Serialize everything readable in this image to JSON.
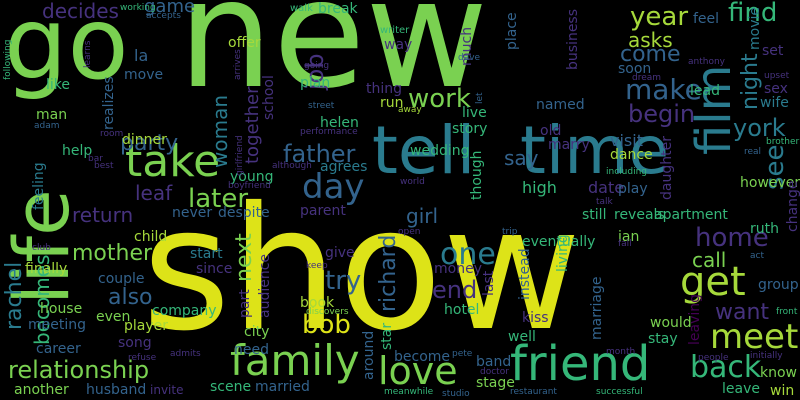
{
  "palette": {
    "background": "#000000",
    "yellow_green": "#a6d93b",
    "lime": "#7ad151",
    "yellow": "#dde318",
    "teal": "#2a7b8e",
    "seafoam": "#35b779",
    "blue": "#33638d",
    "indigo": "#46327e",
    "purple": "#440154"
  },
  "words": [
    {
      "text": "new",
      "color": "#7ad151"
    },
    {
      "text": "show",
      "color": "#dde318"
    },
    {
      "text": "go",
      "color": "#7ad151"
    },
    {
      "text": "tell",
      "color": "#2a7b8e"
    },
    {
      "text": "time",
      "color": "#2a7b8e"
    },
    {
      "text": "life",
      "color": "#7ad151"
    },
    {
      "text": "take",
      "color": "#7ad151"
    },
    {
      "text": "friend",
      "color": "#35b779"
    },
    {
      "text": "family",
      "color": "#7ad151"
    },
    {
      "text": "love",
      "color": "#7ad151"
    },
    {
      "text": "film",
      "color": "#2a7b8e"
    },
    {
      "text": "meet",
      "color": "#a6d93b"
    },
    {
      "text": "get",
      "color": "#a6d93b"
    },
    {
      "text": "day",
      "color": "#33638d"
    },
    {
      "text": "one",
      "color": "#2a7b8e"
    },
    {
      "text": "back",
      "color": "#35b779"
    },
    {
      "text": "make",
      "color": "#33638d"
    },
    {
      "text": "work",
      "color": "#7ad151"
    },
    {
      "text": "find",
      "color": "#35b779"
    },
    {
      "text": "year",
      "color": "#a6d93b"
    },
    {
      "text": "later",
      "color": "#7ad151"
    },
    {
      "text": "home",
      "color": "#46327e"
    },
    {
      "text": "york",
      "color": "#2a7b8e"
    },
    {
      "text": "party",
      "color": "#33638d"
    },
    {
      "text": "father",
      "color": "#33638d"
    },
    {
      "text": "mother",
      "color": "#7ad151"
    },
    {
      "text": "try",
      "color": "#33638d"
    },
    {
      "text": "end",
      "color": "#46327e"
    },
    {
      "text": "bob",
      "color": "#dde318"
    },
    {
      "text": "also",
      "color": "#33638d"
    },
    {
      "text": "relationship",
      "color": "#7ad151"
    },
    {
      "text": "rachel",
      "color": "#2a7b8e"
    },
    {
      "text": "richard",
      "color": "#33638d"
    },
    {
      "text": "next",
      "color": "#7ad151"
    },
    {
      "text": "woman",
      "color": "#2a7b8e"
    },
    {
      "text": "job",
      "color": "#46327e"
    },
    {
      "text": "together",
      "color": "#46327e"
    },
    {
      "text": "begin",
      "color": "#46327e"
    },
    {
      "text": "come",
      "color": "#33638d"
    },
    {
      "text": "asks",
      "color": "#a6d93b"
    },
    {
      "text": "night",
      "color": "#2a7b8e"
    },
    {
      "text": "see",
      "color": "#2a7b8e"
    },
    {
      "text": "call",
      "color": "#7ad151"
    },
    {
      "text": "want",
      "color": "#46327e"
    },
    {
      "text": "return",
      "color": "#46327e"
    },
    {
      "text": "leaf",
      "color": "#46327e"
    },
    {
      "text": "decides",
      "color": "#46327e"
    },
    {
      "text": "game",
      "color": "#33638d"
    },
    {
      "text": "becomes",
      "color": "#35b779"
    },
    {
      "text": "say",
      "color": "#33638d"
    },
    {
      "text": "girl",
      "color": "#33638d"
    },
    {
      "text": "apartment",
      "color": "#35b779"
    },
    {
      "text": "reveals",
      "color": "#35b779"
    },
    {
      "text": "still",
      "color": "#35b779"
    },
    {
      "text": "visit",
      "color": "#33638d"
    },
    {
      "text": "date",
      "color": "#46327e"
    },
    {
      "text": "high",
      "color": "#35b779"
    },
    {
      "text": "way",
      "color": "#46327e"
    },
    {
      "text": "la",
      "color": "#33638d"
    },
    {
      "text": "offer",
      "color": "#a6d93b"
    },
    {
      "text": "move",
      "color": "#33638d"
    },
    {
      "text": "like",
      "color": "#35b779"
    },
    {
      "text": "man",
      "color": "#7ad151"
    },
    {
      "text": "helen",
      "color": "#35b779"
    },
    {
      "text": "run",
      "color": "#a6d93b"
    },
    {
      "text": "live",
      "color": "#35b779"
    },
    {
      "text": "story",
      "color": "#35b779"
    },
    {
      "text": "place",
      "color": "#33638d"
    },
    {
      "text": "business",
      "color": "#46327e"
    },
    {
      "text": "feel",
      "color": "#33638d"
    },
    {
      "text": "lead",
      "color": "#35b779"
    },
    {
      "text": "sex",
      "color": "#46327e"
    },
    {
      "text": "wife",
      "color": "#2a7b8e"
    },
    {
      "text": "couple",
      "color": "#33638d"
    },
    {
      "text": "finally",
      "color": "#a6d93b"
    },
    {
      "text": "house",
      "color": "#7ad151"
    },
    {
      "text": "meeting",
      "color": "#33638d"
    },
    {
      "text": "career",
      "color": "#33638d"
    },
    {
      "text": "song",
      "color": "#46327e"
    },
    {
      "text": "player",
      "color": "#a6d93b"
    },
    {
      "text": "husband",
      "color": "#33638d"
    },
    {
      "text": "another",
      "color": "#7ad151"
    },
    {
      "text": "company",
      "color": "#35b779"
    },
    {
      "text": "city",
      "color": "#7ad151"
    },
    {
      "text": "need",
      "color": "#33638d"
    },
    {
      "text": "scene",
      "color": "#35b779"
    },
    {
      "text": "married",
      "color": "#33638d"
    },
    {
      "text": "stage",
      "color": "#7ad151"
    },
    {
      "text": "band",
      "color": "#33638d"
    },
    {
      "text": "well",
      "color": "#35b779"
    },
    {
      "text": "become",
      "color": "#33638d"
    },
    {
      "text": "hotel",
      "color": "#35b779"
    },
    {
      "text": "instead",
      "color": "#33638d"
    },
    {
      "text": "kiss",
      "color": "#46327e"
    },
    {
      "text": "living",
      "color": "#35b779"
    },
    {
      "text": "eventually",
      "color": "#35b779"
    },
    {
      "text": "ruth",
      "color": "#35b779"
    },
    {
      "text": "ian",
      "color": "#7ad151"
    },
    {
      "text": "play",
      "color": "#33638d"
    },
    {
      "text": "dance",
      "color": "#a6d93b"
    },
    {
      "text": "wedding",
      "color": "#35b779"
    },
    {
      "text": "agrees",
      "color": "#2a7b8e"
    },
    {
      "text": "though",
      "color": "#35b779"
    },
    {
      "text": "named",
      "color": "#33638d"
    },
    {
      "text": "marry",
      "color": "#46327e"
    },
    {
      "text": "daughter",
      "color": "#46327e"
    },
    {
      "text": "however",
      "color": "#7ad151"
    },
    {
      "text": "change",
      "color": "#46327e"
    },
    {
      "text": "start",
      "color": "#2a7b8e"
    },
    {
      "text": "give",
      "color": "#46327e"
    },
    {
      "text": "parent",
      "color": "#46327e"
    },
    {
      "text": "book",
      "color": "#a6d93b"
    },
    {
      "text": "money",
      "color": "#46327e"
    },
    {
      "text": "last",
      "color": "#46327e"
    },
    {
      "text": "child",
      "color": "#a6d93b"
    },
    {
      "text": "never",
      "color": "#33638d"
    },
    {
      "text": "despite",
      "color": "#33638d"
    },
    {
      "text": "since",
      "color": "#46327e"
    },
    {
      "text": "part",
      "color": "#46327e"
    },
    {
      "text": "audience",
      "color": "#46327e"
    },
    {
      "text": "young",
      "color": "#35b779"
    },
    {
      "text": "dinner",
      "color": "#a6d93b"
    },
    {
      "text": "realizes",
      "color": "#33638d"
    },
    {
      "text": "school",
      "color": "#46327e"
    },
    {
      "text": "plan",
      "color": "#35b779"
    },
    {
      "text": "thing",
      "color": "#46327e"
    },
    {
      "text": "help",
      "color": "#35b779"
    },
    {
      "text": "feeling",
      "color": "#2a7b8e"
    },
    {
      "text": "even",
      "color": "#7ad151"
    },
    {
      "text": "stay",
      "color": "#35b779"
    },
    {
      "text": "would",
      "color": "#7ad151"
    },
    {
      "text": "leave",
      "color": "#35b779"
    },
    {
      "text": "win",
      "color": "#a6d93b"
    },
    {
      "text": "know",
      "color": "#7ad151"
    },
    {
      "text": "group",
      "color": "#33638d"
    },
    {
      "text": "soon",
      "color": "#33638d"
    },
    {
      "text": "movie",
      "color": "#2a7b8e"
    },
    {
      "text": "set",
      "color": "#46327e"
    },
    {
      "text": "break",
      "color": "#35b779"
    },
    {
      "text": "walk",
      "color": "#35b779"
    },
    {
      "text": "writer",
      "color": "#35b779"
    },
    {
      "text": "much",
      "color": "#46327e"
    },
    {
      "text": "old",
      "color": "#46327e"
    },
    {
      "text": "star",
      "color": "#35b779"
    },
    {
      "text": "around",
      "color": "#33638d"
    },
    {
      "text": "marriage",
      "color": "#33638d"
    },
    {
      "text": "leaving",
      "color": "#440154"
    },
    {
      "text": "working",
      "color": "#35b779"
    },
    {
      "text": "accepts",
      "color": "#33638d"
    },
    {
      "text": "following",
      "color": "#35b779"
    },
    {
      "text": "learns",
      "color": "#46327e"
    },
    {
      "text": "arrives",
      "color": "#46327e"
    },
    {
      "text": "going",
      "color": "#46327e"
    },
    {
      "text": "dave",
      "color": "#33638d"
    },
    {
      "text": "anthony",
      "color": "#46327e"
    },
    {
      "text": "dream",
      "color": "#46327e"
    },
    {
      "text": "upset",
      "color": "#46327e"
    },
    {
      "text": "brother",
      "color": "#35b779"
    },
    {
      "text": "real",
      "color": "#33638d"
    },
    {
      "text": "let",
      "color": "#33638d"
    },
    {
      "text": "away",
      "color": "#a6d93b"
    },
    {
      "text": "street",
      "color": "#33638d"
    },
    {
      "text": "performance",
      "color": "#46327e"
    },
    {
      "text": "room",
      "color": "#46327e"
    },
    {
      "text": "adam",
      "color": "#33638d"
    },
    {
      "text": "bar",
      "color": "#46327e"
    },
    {
      "text": "best",
      "color": "#46327e"
    },
    {
      "text": "girlfriend",
      "color": "#46327e"
    },
    {
      "text": "boyfriend",
      "color": "#46327e"
    },
    {
      "text": "although",
      "color": "#46327e"
    },
    {
      "text": "world",
      "color": "#46327e"
    },
    {
      "text": "talk",
      "color": "#46327e"
    },
    {
      "text": "including",
      "color": "#35b779"
    },
    {
      "text": "open",
      "color": "#46327e"
    },
    {
      "text": "trip",
      "color": "#33638d"
    },
    {
      "text": "fall",
      "color": "#46327e"
    },
    {
      "text": "act",
      "color": "#33638d"
    },
    {
      "text": "club",
      "color": "#46327e"
    },
    {
      "text": "keep",
      "color": "#46327e"
    },
    {
      "text": "discovers",
      "color": "#7ad151"
    },
    {
      "text": "front",
      "color": "#35b779"
    },
    {
      "text": "month",
      "color": "#46327e"
    },
    {
      "text": "people",
      "color": "#46327e"
    },
    {
      "text": "initially",
      "color": "#46327e"
    },
    {
      "text": "refuse",
      "color": "#46327e"
    },
    {
      "text": "admits",
      "color": "#46327e"
    },
    {
      "text": "invite",
      "color": "#46327e"
    },
    {
      "text": "pete",
      "color": "#33638d"
    },
    {
      "text": "doctor",
      "color": "#46327e"
    },
    {
      "text": "studio",
      "color": "#33638d"
    },
    {
      "text": "meanwhile",
      "color": "#35b779"
    },
    {
      "text": "restaurant",
      "color": "#33638d"
    },
    {
      "text": "successful",
      "color": "#35b779"
    }
  ]
}
